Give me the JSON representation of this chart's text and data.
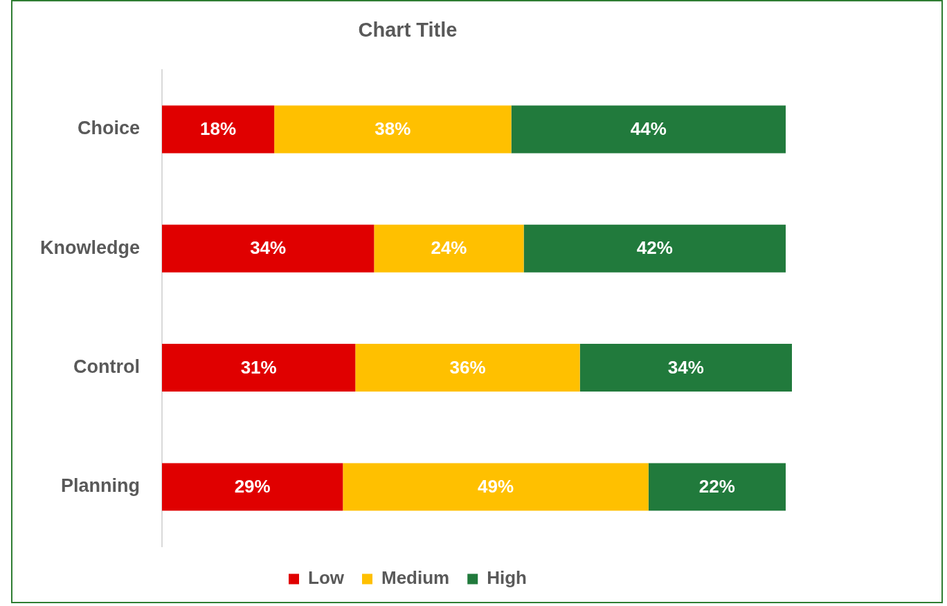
{
  "chart_data": {
    "type": "bar",
    "title": "Chart Title",
    "orientation": "horizontal",
    "stacked": true,
    "categories": [
      "Choice",
      "Knowledge",
      "Control",
      "Planning"
    ],
    "series": [
      {
        "name": "Low",
        "color": "#e00000",
        "values": [
          18,
          34,
          31,
          29
        ],
        "value_labels": [
          "18%",
          "34%",
          "31%",
          "29%"
        ]
      },
      {
        "name": "Medium",
        "color": "#ffc000",
        "values": [
          38,
          24,
          36,
          49
        ],
        "value_labels": [
          "38%",
          "24%",
          "36%",
          "49%"
        ]
      },
      {
        "name": "High",
        "color": "#217a3c",
        "values": [
          44,
          42,
          34,
          22
        ],
        "value_labels": [
          "44%",
          "42%",
          "34%",
          "22%"
        ]
      }
    ],
    "xlim": [
      0,
      101
    ],
    "tick_labels": "y",
    "grid": false,
    "legend": "bottom"
  }
}
